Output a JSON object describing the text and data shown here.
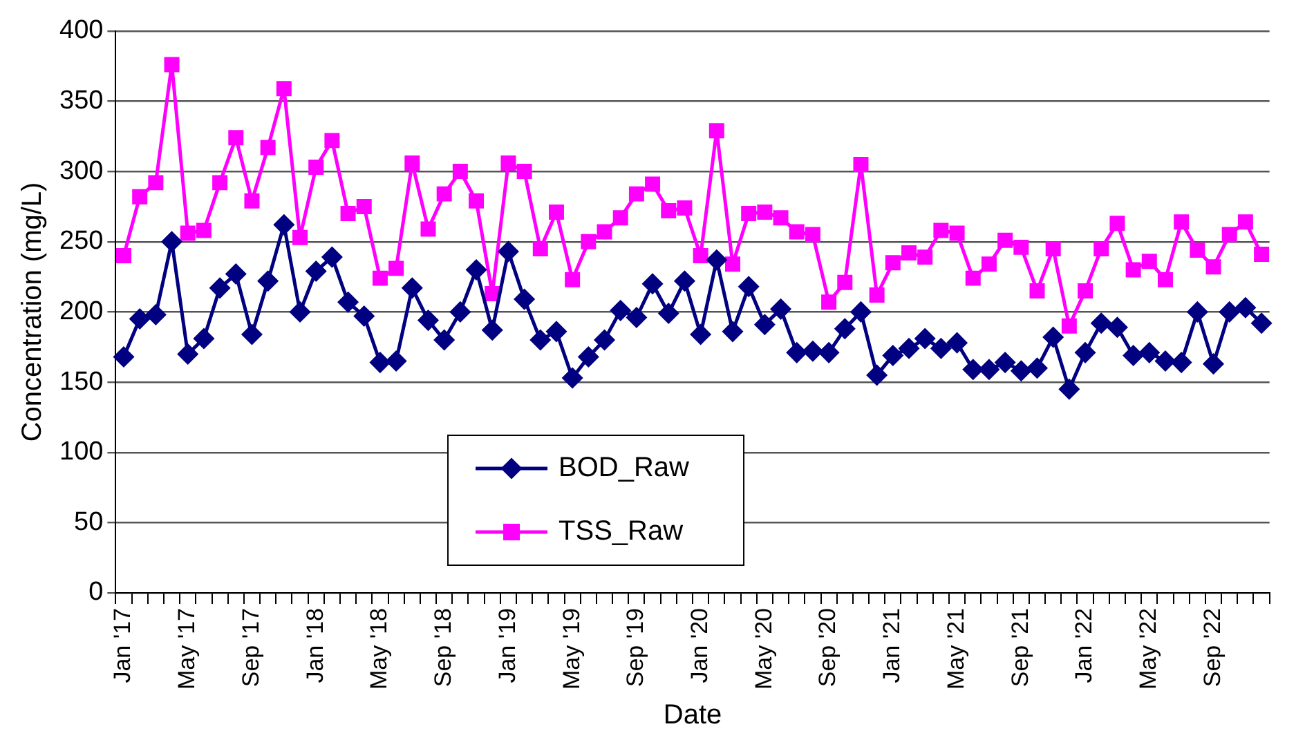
{
  "chart_data": {
    "type": "line",
    "xlabel": "Date",
    "ylabel": "Concentration (mg/L)",
    "categories": [
      "Jan '17",
      null,
      null,
      null,
      "May '17",
      null,
      null,
      null,
      "Sep '17",
      null,
      null,
      null,
      "Jan '18",
      null,
      null,
      null,
      "May '18",
      null,
      null,
      null,
      "Sep '18",
      null,
      null,
      null,
      "Jan '19",
      null,
      null,
      null,
      "May '19",
      null,
      null,
      null,
      "Sep '19",
      null,
      null,
      null,
      "Jan '20",
      null,
      null,
      null,
      "May '20",
      null,
      null,
      null,
      "Sep '20",
      null,
      null,
      null,
      "Jan '21",
      null,
      null,
      null,
      "May '21",
      null,
      null,
      null,
      "Sep '21",
      null,
      null,
      null,
      "Jan '22",
      null,
      null,
      null,
      "May '22",
      null,
      null,
      null,
      "Sep '22",
      null,
      null,
      null
    ],
    "series": [
      {
        "name": "BOD_Raw",
        "color": "#000080",
        "marker": "diamond",
        "values": [
          168,
          195,
          198,
          250,
          170,
          181,
          217,
          227,
          184,
          222,
          262,
          200,
          229,
          239,
          207,
          197,
          164,
          165,
          217,
          194,
          180,
          200,
          230,
          187,
          243,
          209,
          180,
          186,
          153,
          168,
          180,
          201,
          196,
          220,
          199,
          222,
          184,
          237,
          186,
          218,
          191,
          202,
          171,
          172,
          171,
          188,
          200,
          155,
          169,
          174,
          181,
          174,
          178,
          159,
          159,
          164,
          158,
          160,
          182,
          145,
          171,
          192,
          189,
          169,
          171,
          165,
          164,
          200,
          163,
          200,
          203,
          192
        ]
      },
      {
        "name": "TSS_Raw",
        "color": "#ff00ff",
        "marker": "square",
        "values": [
          240,
          282,
          292,
          376,
          256,
          258,
          292,
          324,
          279,
          317,
          359,
          253,
          303,
          322,
          270,
          275,
          224,
          231,
          306,
          259,
          284,
          300,
          279,
          213,
          306,
          300,
          245,
          271,
          223,
          250,
          257,
          267,
          284,
          291,
          272,
          274,
          240,
          329,
          234,
          270,
          271,
          267,
          257,
          255,
          207,
          221,
          305,
          212,
          235,
          242,
          239,
          258,
          256,
          224,
          234,
          251,
          246,
          215,
          245,
          190,
          215,
          245,
          263,
          230,
          236,
          223,
          264,
          244,
          232,
          255,
          264,
          241
        ]
      }
    ],
    "ylim": [
      0,
      400
    ],
    "yticks": [
      0,
      50,
      100,
      150,
      200,
      250,
      300,
      350,
      400
    ],
    "grid": "y",
    "legend": "bottom",
    "line_style": "solid"
  }
}
